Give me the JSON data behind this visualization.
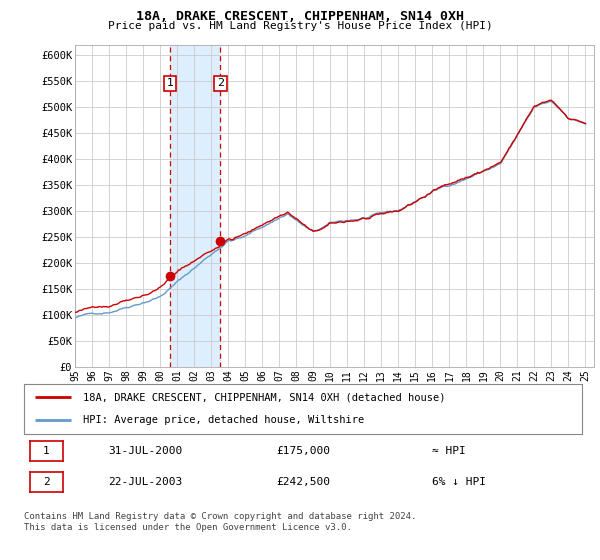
{
  "title": "18A, DRAKE CRESCENT, CHIPPENHAM, SN14 0XH",
  "subtitle": "Price paid vs. HM Land Registry's House Price Index (HPI)",
  "ylabel_ticks": [
    "£0",
    "£50K",
    "£100K",
    "£150K",
    "£200K",
    "£250K",
    "£300K",
    "£350K",
    "£400K",
    "£450K",
    "£500K",
    "£550K",
    "£600K"
  ],
  "ylim": [
    0,
    620000
  ],
  "ytick_values": [
    0,
    50000,
    100000,
    150000,
    200000,
    250000,
    300000,
    350000,
    400000,
    450000,
    500000,
    550000,
    600000
  ],
  "x_start_year": 1995,
  "x_end_year": 2025,
  "sale1_date": 2000.58,
  "sale1_price": 175000,
  "sale1_label": "1",
  "sale2_date": 2003.55,
  "sale2_price": 242500,
  "sale2_label": "2",
  "house_color": "#cc0000",
  "hpi_color": "#6699cc",
  "highlight_color": "#ddeeff",
  "vline_color": "#cc0000",
  "legend_house_label": "18A, DRAKE CRESCENT, CHIPPENHAM, SN14 0XH (detached house)",
  "legend_hpi_label": "HPI: Average price, detached house, Wiltshire",
  "table_row1": [
    "1",
    "31-JUL-2000",
    "£175,000",
    "≈ HPI"
  ],
  "table_row2": [
    "2",
    "22-JUL-2003",
    "£242,500",
    "6% ↓ HPI"
  ],
  "footer": "Contains HM Land Registry data © Crown copyright and database right 2024.\nThis data is licensed under the Open Government Licence v3.0.",
  "background_color": "#ffffff",
  "grid_color": "#cccccc"
}
